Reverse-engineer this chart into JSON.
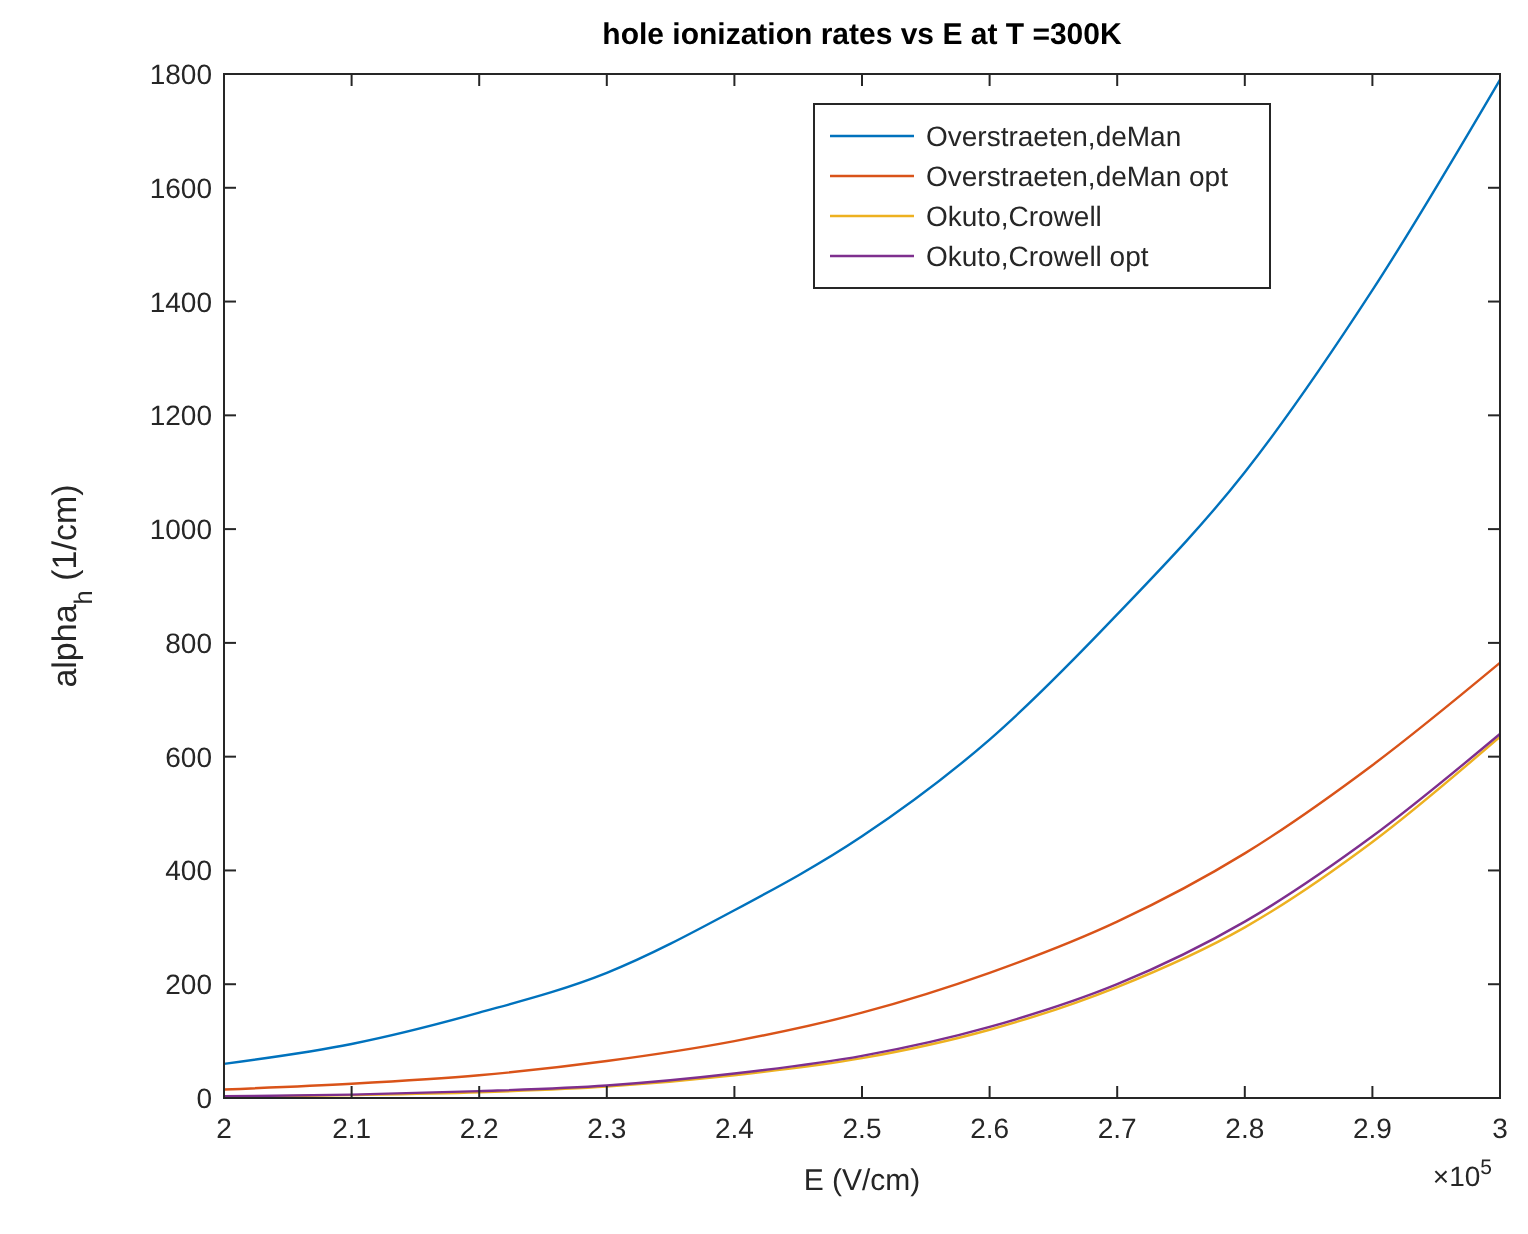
{
  "chart_data": {
    "type": "line",
    "title": "hole ionization rates vs E at T =300K",
    "xlabel": "E (V/cm)",
    "ylabel": "alpha$_{h}$ (1/cm)",
    "annotations": [
      "×10$^{5}$"
    ],
    "x": [
      2,
      2.1,
      2.2,
      2.3,
      2.4,
      2.5,
      2.6,
      2.7,
      2.8,
      2.9,
      3
    ],
    "series": [
      {
        "name": "Overstraeten,deMan",
        "color": "#0072bd",
        "values": [
          60,
          95,
          150,
          220,
          330,
          460,
          630,
          850,
          1100,
          1420,
          1790
        ]
      },
      {
        "name": "Overstraeten,deMan opt",
        "color": "#d95319",
        "values": [
          15,
          25,
          40,
          65,
          100,
          150,
          220,
          310,
          430,
          585,
          765
        ]
      },
      {
        "name": "Okuto,Crowell",
        "color": "#edb120",
        "values": [
          2,
          5,
          10,
          20,
          40,
          70,
          120,
          195,
          300,
          450,
          635
        ]
      },
      {
        "name": "Okuto,Crowell opt",
        "color": "#7e2f8e",
        "values": [
          3,
          6,
          12,
          22,
          43,
          74,
          125,
          200,
          310,
          460,
          640
        ]
      }
    ],
    "xlim": [
      2,
      3
    ],
    "xticks": [
      2,
      2.1,
      2.2,
      2.3,
      2.4,
      2.5,
      2.6,
      2.7,
      2.8,
      2.9,
      3
    ],
    "ylim": [
      0,
      1800
    ],
    "yticks": [
      0,
      200,
      400,
      600,
      800,
      1000,
      1200,
      1400,
      1600,
      1800
    ],
    "grid": false,
    "legend": "top",
    "marker": "none",
    "line_style": "solid"
  }
}
